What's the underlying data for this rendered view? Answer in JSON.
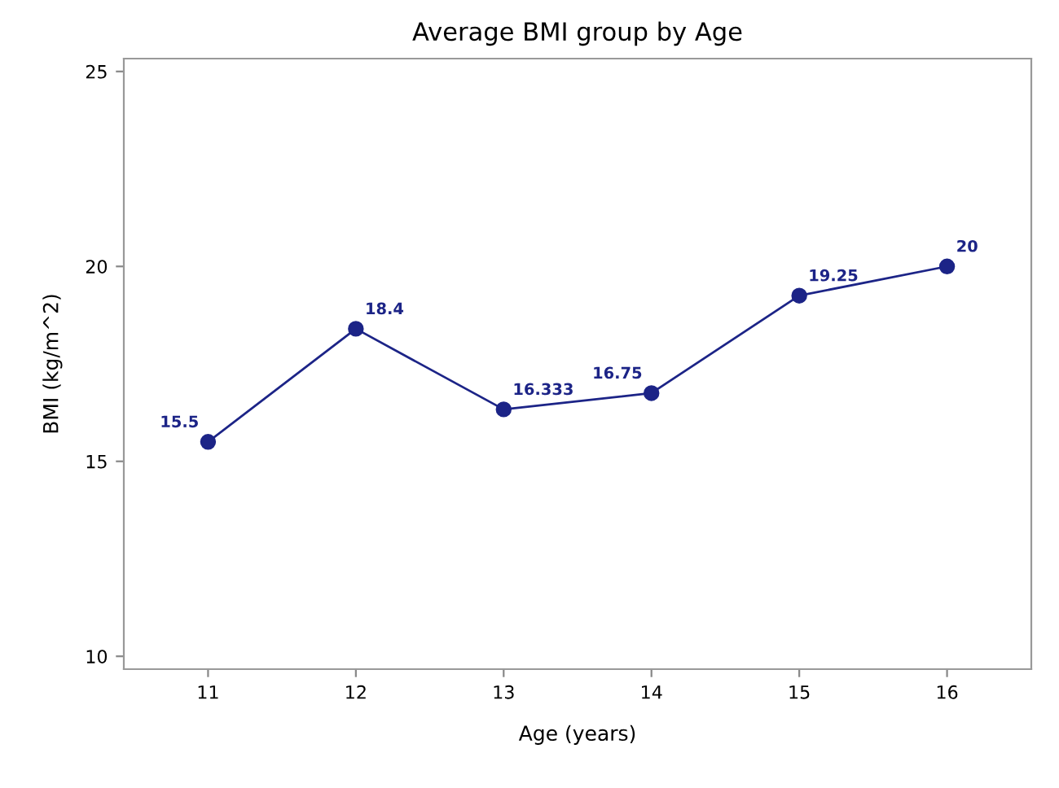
{
  "chart_data": {
    "type": "line",
    "title": "Average BMI group by Age",
    "xlabel": "Age (years)",
    "ylabel": "BMI (kg/m^2)",
    "x": [
      11,
      12,
      13,
      14,
      15,
      16
    ],
    "series": [
      {
        "color": "#1c2487",
        "values": [
          15.5,
          18.4,
          16.333,
          16.75,
          19.25,
          20
        ]
      }
    ],
    "xlim": [
      10.43,
      16.57
    ],
    "xticks": [
      11,
      12,
      13,
      14,
      15,
      16
    ],
    "ylim": [
      9.67,
      25.33
    ],
    "yticks": [
      10,
      15,
      20,
      25
    ],
    "marker": "circle",
    "line_style": "solid",
    "data_labels": true
  }
}
